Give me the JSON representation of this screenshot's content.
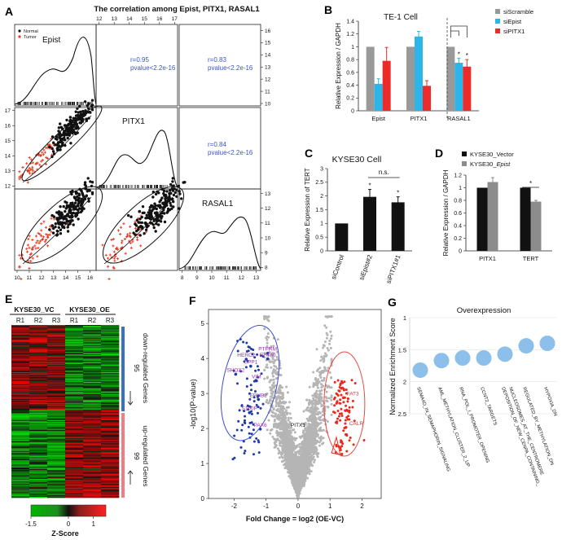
{
  "panels": [
    {
      "id": "A",
      "letter": "A"
    },
    {
      "id": "B",
      "letter": "B"
    },
    {
      "id": "C",
      "letter": "C"
    },
    {
      "id": "D",
      "letter": "D"
    },
    {
      "id": "E",
      "letter": "E"
    },
    {
      "id": "F",
      "letter": "F"
    },
    {
      "id": "G",
      "letter": "G"
    }
  ],
  "chart_data": [
    {
      "panel": "A",
      "type": "scatter",
      "title": "The correlation among Epist, PITX1, RASAL1",
      "variables": [
        "Epist",
        "PITX1",
        "RASAL1"
      ],
      "legend": [
        "Normal",
        "Tumor"
      ],
      "correlations": [
        {
          "pair": [
            "Epist",
            "PITX1"
          ],
          "r_text": "r=0.95",
          "p_text": "pvalue<2.2e-16"
        },
        {
          "pair": [
            "Epist",
            "RASAL1"
          ],
          "r_text": "r=0.83",
          "p_text": "pvalue<2.2e-16"
        },
        {
          "pair": [
            "PITX1",
            "RASAL1"
          ],
          "r_text": "r=0.84",
          "p_text": "pvalue<2.2e-16"
        }
      ],
      "epist_ticks": [
        10,
        11,
        12,
        13,
        14,
        15,
        16
      ],
      "pitx1_ticks": [
        12,
        13,
        14,
        15,
        16,
        17
      ],
      "rasal1_ticks": [
        8,
        9,
        10,
        11,
        12,
        13
      ],
      "epist_lim": [
        9.8,
        16.5
      ],
      "pitx1_lim": [
        11.8,
        17.2
      ],
      "rasal1_lim": [
        7.8,
        13.3
      ]
    },
    {
      "panel": "B",
      "type": "bar",
      "title": "TE-1 Cell",
      "ylabel": "Relative Expression / GAPDH",
      "categories": [
        "Epist",
        "PITX1",
        "RASAL1"
      ],
      "series": [
        {
          "name": "siScramble",
          "color": "#999999",
          "values": [
            1.0,
            1.0,
            1.0
          ],
          "err": [
            0,
            0,
            0
          ]
        },
        {
          "name": "siEpist",
          "color": "#2bb5e8",
          "values": [
            0.42,
            1.16,
            0.75
          ],
          "err": [
            0.08,
            0.08,
            0.07
          ]
        },
        {
          "name": "siPITX1",
          "color": "#ec2b2b",
          "values": [
            0.78,
            0.39,
            0.69
          ],
          "err": [
            0.21,
            0.08,
            0.11
          ]
        }
      ],
      "ylim": [
        0,
        1.4
      ],
      "yticks": [
        "0",
        "0.2",
        "0.4",
        "0.6",
        "0.8",
        "1",
        "1.2",
        "1.4"
      ],
      "significance": [
        "*",
        "*",
        "*"
      ]
    },
    {
      "panel": "C",
      "type": "bar",
      "title": "KYSE30 Cell",
      "ylabel": "Relative Expression of TERT",
      "categories": [
        "siControl",
        "siEpist#2",
        "siPITX1#1"
      ],
      "values": [
        1.0,
        1.97,
        1.77
      ],
      "err": [
        0,
        0.27,
        0.2
      ],
      "ylim": [
        0,
        3
      ],
      "yticks": [
        "0",
        "0.5",
        "1",
        "1.5",
        "2",
        "2.5",
        "3"
      ],
      "annotations": [
        "n.s.",
        "*",
        "*"
      ]
    },
    {
      "panel": "D",
      "type": "bar",
      "ylabel": "Relative Expression / GAPDH",
      "categories": [
        "PITX1",
        "TERT"
      ],
      "series": [
        {
          "name": "KYSE30_Vector",
          "color": "#111111",
          "values": [
            1.0,
            1.0
          ],
          "err": [
            0,
            0
          ]
        },
        {
          "name": "KYSE30_Epist",
          "color": "#8c8c8c",
          "values": [
            1.09,
            0.78
          ],
          "err": [
            0.07,
            0.02
          ]
        }
      ],
      "legend_display": [
        "KYSE30_Vector",
        "KYSE30_"
      ],
      "legend_italic": "Epist",
      "ylim": [
        0,
        1.2
      ],
      "yticks": [
        "0",
        "0.2",
        "0.4",
        "0.6",
        "0.8",
        "1",
        "1.2"
      ],
      "annotation": "*"
    },
    {
      "panel": "E",
      "type": "heatmap",
      "groups": [
        "KYSE30_VC",
        "KYSE30_OE"
      ],
      "columns": [
        "R1",
        "R2",
        "R3",
        "R1",
        "R2",
        "R3"
      ],
      "down_count": "95",
      "down_label": "down-regulated Genes",
      "up_count": "99",
      "up_label": "up-regulated Genes",
      "colorbar_ticks": [
        "-1.5",
        "0",
        "1"
      ],
      "colorbar_label": "Z-Score",
      "colorbar_range": [
        -1.5,
        1.5
      ]
    },
    {
      "panel": "F",
      "type": "scatter",
      "xlabel": "Fold Change = log2 (OE-VC)",
      "ylabel": "-log10(P-value)",
      "xlim": [
        -2.8,
        2.6
      ],
      "ylim": [
        0,
        5.4
      ],
      "xticks": [
        "-2",
        "-1",
        "0",
        "1",
        "2"
      ],
      "yticks": [
        "0",
        "1",
        "2",
        "3",
        "4",
        "5"
      ],
      "labeled_genes": [
        {
          "name": "HERC2",
          "x": -1.62,
          "y": 4.05,
          "group": "down"
        },
        {
          "name": "PTPRM",
          "x": -0.95,
          "y": 4.22,
          "group": "down"
        },
        {
          "name": "GATA6",
          "x": -0.95,
          "y": 4.06,
          "group": "down"
        },
        {
          "name": "UPP1",
          "x": -1.48,
          "y": 3.85,
          "group": "down"
        },
        {
          "name": "SHOX2",
          "x": -1.95,
          "y": 3.62,
          "group": "down"
        },
        {
          "name": "VIM",
          "x": -1.3,
          "y": 3.43,
          "group": "down"
        },
        {
          "name": "EPHB2",
          "x": -1.24,
          "y": 2.9,
          "group": "down"
        },
        {
          "name": "S100P",
          "x": -1.52,
          "y": 2.52,
          "group": "down"
        },
        {
          "name": "PAX6",
          "x": -1.18,
          "y": 2.05,
          "group": "down"
        },
        {
          "name": "PITX1",
          "x": 0.0,
          "y": 2.05,
          "group": "ns"
        },
        {
          "name": "FAT3",
          "x": 1.52,
          "y": 2.95,
          "group": "up"
        },
        {
          "name": "CALR",
          "x": 1.6,
          "y": 2.1,
          "group": "up"
        }
      ],
      "point_counts": {
        "down": 85,
        "up": 90,
        "ns": 2600
      }
    },
    {
      "panel": "G",
      "type": "scatter",
      "title": "Overexpression",
      "ylabel": "Normalized Enrichment Score",
      "categories": [
        "SEMA4D_IN_SEMAPHORIN_SIGNALING",
        "AML_METHYLATION_CLUSTER_2_UP",
        "RNA_POL_I_PROMOTER_OPENING",
        "CCNT2_TARGETS",
        "DEPOSITION_OF_NEW_CENPA_CONTAINING_NUCLEOSOMES_AT_THE_CENTROMERE",
        "REGULATED_BY_METHYLATION_DN",
        "HYPOXIA_DN"
      ],
      "label_lines": [
        [
          "SEMA4D_IN_SEMAPHORIN_SIGNALING"
        ],
        [
          "AML_METHYLATION_CLUSTER_2_UP"
        ],
        [
          "RNA_POL_I_PROMOTER_OPENING"
        ],
        [
          "CCNT2_TARGETS"
        ],
        [
          "DEPOSITION_OF_NEW_CENPA_CONTAINING_",
          "NUCLEOSOMES_AT_THE_CENTROMERE"
        ],
        [
          "REGULATED_BY_METHYLATION_DN"
        ],
        [
          "HYPOXIA_DN"
        ]
      ],
      "values": [
        1.82,
        1.67,
        1.63,
        1.63,
        1.57,
        1.44,
        1.4
      ],
      "ylim": [
        1,
        2.5
      ],
      "yticks": [
        "1",
        "1.5",
        "2",
        "2.5"
      ],
      "y_inverted": true,
      "marker_color": "#8cc0ea"
    }
  ]
}
